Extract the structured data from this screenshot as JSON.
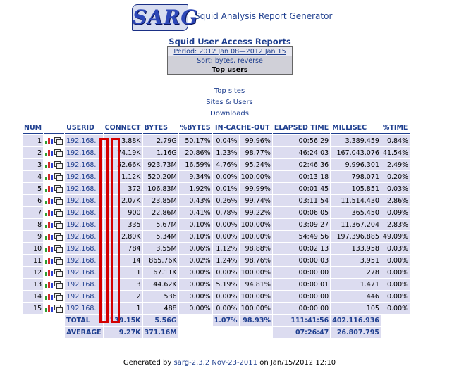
{
  "header": {
    "logo_text": "SARG",
    "app_title": "Squid Analysis Report Generator"
  },
  "report": {
    "title": "Squid User Access Reports",
    "period": "Period: 2012 Jan 08—2012 Jan 15",
    "sort": "Sort: bytes, reverse",
    "top_users": "Top users"
  },
  "links": {
    "top_sites": "Top sites",
    "sites_users": "Sites & Users",
    "downloads": "Downloads"
  },
  "table": {
    "headers": {
      "num": "NUM",
      "userid": "USERID",
      "connect": "CONNECT",
      "bytes": "BYTES",
      "pct_bytes": "%BYTES",
      "in_cache_out": "IN-CACHE-OUT",
      "elapsed": "ELAPSED TIME",
      "millisec": "MILLISEC",
      "pct_time": "%TIME"
    },
    "rows": [
      {
        "num": "1",
        "userid": "192.168.",
        "connect": "3.88K",
        "bytes": "2.79G",
        "pct_bytes": "50.17%",
        "in": "0.04%",
        "out": "99.96%",
        "elapsed": "00:56:29",
        "millisec": "3.389.459",
        "pct_time": "0.84%"
      },
      {
        "num": "2",
        "userid": "192.168.",
        "connect": "74.19K",
        "bytes": "1.16G",
        "pct_bytes": "20.86%",
        "in": "1.23%",
        "out": "98.77%",
        "elapsed": "46:24:03",
        "millisec": "167.043.076",
        "pct_time": "41.54%"
      },
      {
        "num": "3",
        "userid": "192.168.",
        "connect": "52.66K",
        "bytes": "923.73M",
        "pct_bytes": "16.59%",
        "in": "4.76%",
        "out": "95.24%",
        "elapsed": "02:46:36",
        "millisec": "9.996.301",
        "pct_time": "2.49%"
      },
      {
        "num": "4",
        "userid": "192.168.",
        "connect": "1.12K",
        "bytes": "520.20M",
        "pct_bytes": "9.34%",
        "in": "0.00%",
        "out": "100.00%",
        "elapsed": "00:13:18",
        "millisec": "798.071",
        "pct_time": "0.20%"
      },
      {
        "num": "5",
        "userid": "192.168.",
        "connect": "372",
        "bytes": "106.83M",
        "pct_bytes": "1.92%",
        "in": "0.01%",
        "out": "99.99%",
        "elapsed": "00:01:45",
        "millisec": "105.851",
        "pct_time": "0.03%"
      },
      {
        "num": "6",
        "userid": "192.168.",
        "connect": "2.07K",
        "bytes": "23.85M",
        "pct_bytes": "0.43%",
        "in": "0.26%",
        "out": "99.74%",
        "elapsed": "03:11:54",
        "millisec": "11.514.430",
        "pct_time": "2.86%"
      },
      {
        "num": "7",
        "userid": "192.168.",
        "connect": "900",
        "bytes": "22.86M",
        "pct_bytes": "0.41%",
        "in": "0.78%",
        "out": "99.22%",
        "elapsed": "00:06:05",
        "millisec": "365.450",
        "pct_time": "0.09%"
      },
      {
        "num": "8",
        "userid": "192.168.",
        "connect": "335",
        "bytes": "5.67M",
        "pct_bytes": "0.10%",
        "in": "0.00%",
        "out": "100.00%",
        "elapsed": "03:09:27",
        "millisec": "11.367.204",
        "pct_time": "2.83%"
      },
      {
        "num": "9",
        "userid": "192.168.",
        "connect": "2.80K",
        "bytes": "5.34M",
        "pct_bytes": "0.10%",
        "in": "0.00%",
        "out": "100.00%",
        "elapsed": "54:49:56",
        "millisec": "197.396.885",
        "pct_time": "49.09%"
      },
      {
        "num": "10",
        "userid": "192.168.",
        "connect": "784",
        "bytes": "3.55M",
        "pct_bytes": "0.06%",
        "in": "1.12%",
        "out": "98.88%",
        "elapsed": "00:02:13",
        "millisec": "133.958",
        "pct_time": "0.03%"
      },
      {
        "num": "11",
        "userid": "192.168.",
        "connect": "14",
        "bytes": "865.76K",
        "pct_bytes": "0.02%",
        "in": "1.24%",
        "out": "98.76%",
        "elapsed": "00:00:03",
        "millisec": "3.951",
        "pct_time": "0.00%"
      },
      {
        "num": "12",
        "userid": "192.168.",
        "connect": "1",
        "bytes": "67.11K",
        "pct_bytes": "0.00%",
        "in": "0.00%",
        "out": "100.00%",
        "elapsed": "00:00:00",
        "millisec": "278",
        "pct_time": "0.00%"
      },
      {
        "num": "13",
        "userid": "192.168.",
        "connect": "3",
        "bytes": "44.62K",
        "pct_bytes": "0.00%",
        "in": "5.19%",
        "out": "94.81%",
        "elapsed": "00:00:01",
        "millisec": "1.471",
        "pct_time": "0.00%"
      },
      {
        "num": "14",
        "userid": "192.168.",
        "connect": "2",
        "bytes": "536",
        "pct_bytes": "0.00%",
        "in": "0.00%",
        "out": "100.00%",
        "elapsed": "00:00:00",
        "millisec": "446",
        "pct_time": "0.00%"
      },
      {
        "num": "15",
        "userid": "192.168.",
        "connect": "1",
        "bytes": "488",
        "pct_bytes": "0.00%",
        "in": "0.00%",
        "out": "100.00%",
        "elapsed": "00:00:00",
        "millisec": "105",
        "pct_time": "0.00%"
      }
    ],
    "total": {
      "label": "TOTAL",
      "connect": "139.15K",
      "bytes": "5.56G",
      "in": "1.07%",
      "out": "98.93%",
      "elapsed": "111:41:56",
      "millisec": "402.116.936"
    },
    "average": {
      "label": "AVERAGE",
      "connect": "9.27K",
      "bytes": "371.16M",
      "elapsed": "07:26:47",
      "millisec": "26.807.795"
    }
  },
  "footer": {
    "generated_by": "Generated by",
    "version_link": "sarg-2.3.2 Nov-23-2011",
    "generated_on": "on Jan/15/2012 12:10"
  },
  "colors": {
    "accent": "#1f3f8f",
    "cell_bg": "#dcdcf0",
    "redaction": "#d40000"
  }
}
